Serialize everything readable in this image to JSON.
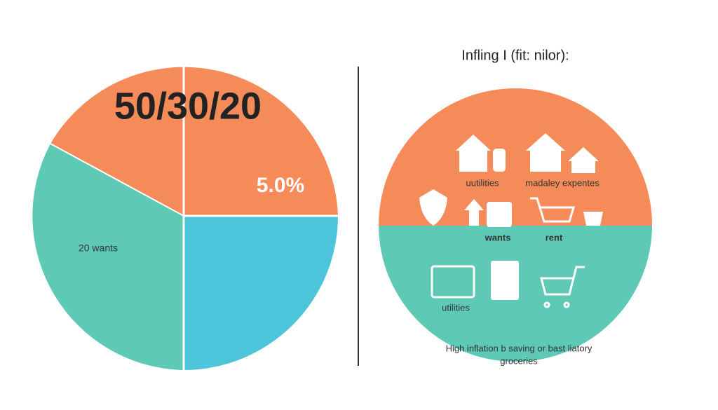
{
  "left": {
    "headline": "50/30/20",
    "percent_label": "5.0%",
    "segment_label": "20 wants"
  },
  "right": {
    "title": "Infling I (fit: nilor):",
    "labels": [
      "uutilities",
      "madaley expentes",
      "wants",
      "rent",
      "utilities"
    ],
    "caption_lines": [
      "High inflation b saving or bast liatory",
      "groceries"
    ]
  }
}
